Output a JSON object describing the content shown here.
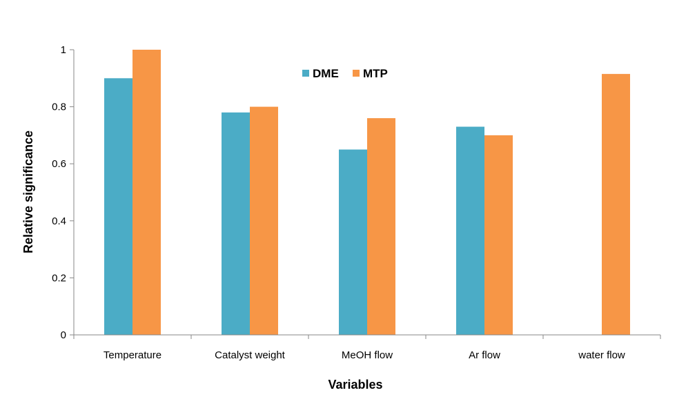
{
  "chart_data": {
    "type": "bar",
    "categories": [
      "Temperature",
      "Catalyst weight",
      "MeOH flow",
      "Ar flow",
      "water flow"
    ],
    "series": [
      {
        "name": "DME",
        "color": "#4BACC6",
        "values": [
          0.9,
          0.78,
          0.65,
          0.73,
          null
        ]
      },
      {
        "name": "MTP",
        "color": "#F79646",
        "values": [
          1.0,
          0.8,
          0.76,
          0.7,
          0.915
        ]
      }
    ],
    "xlabel": "Variables",
    "ylabel": "Relative significance",
    "ylim": [
      0,
      1
    ],
    "yticks": [
      "0",
      "0.2",
      "0.4",
      "0.6",
      "0.8",
      "1"
    ],
    "grid": false,
    "legend_position": "top-center"
  }
}
